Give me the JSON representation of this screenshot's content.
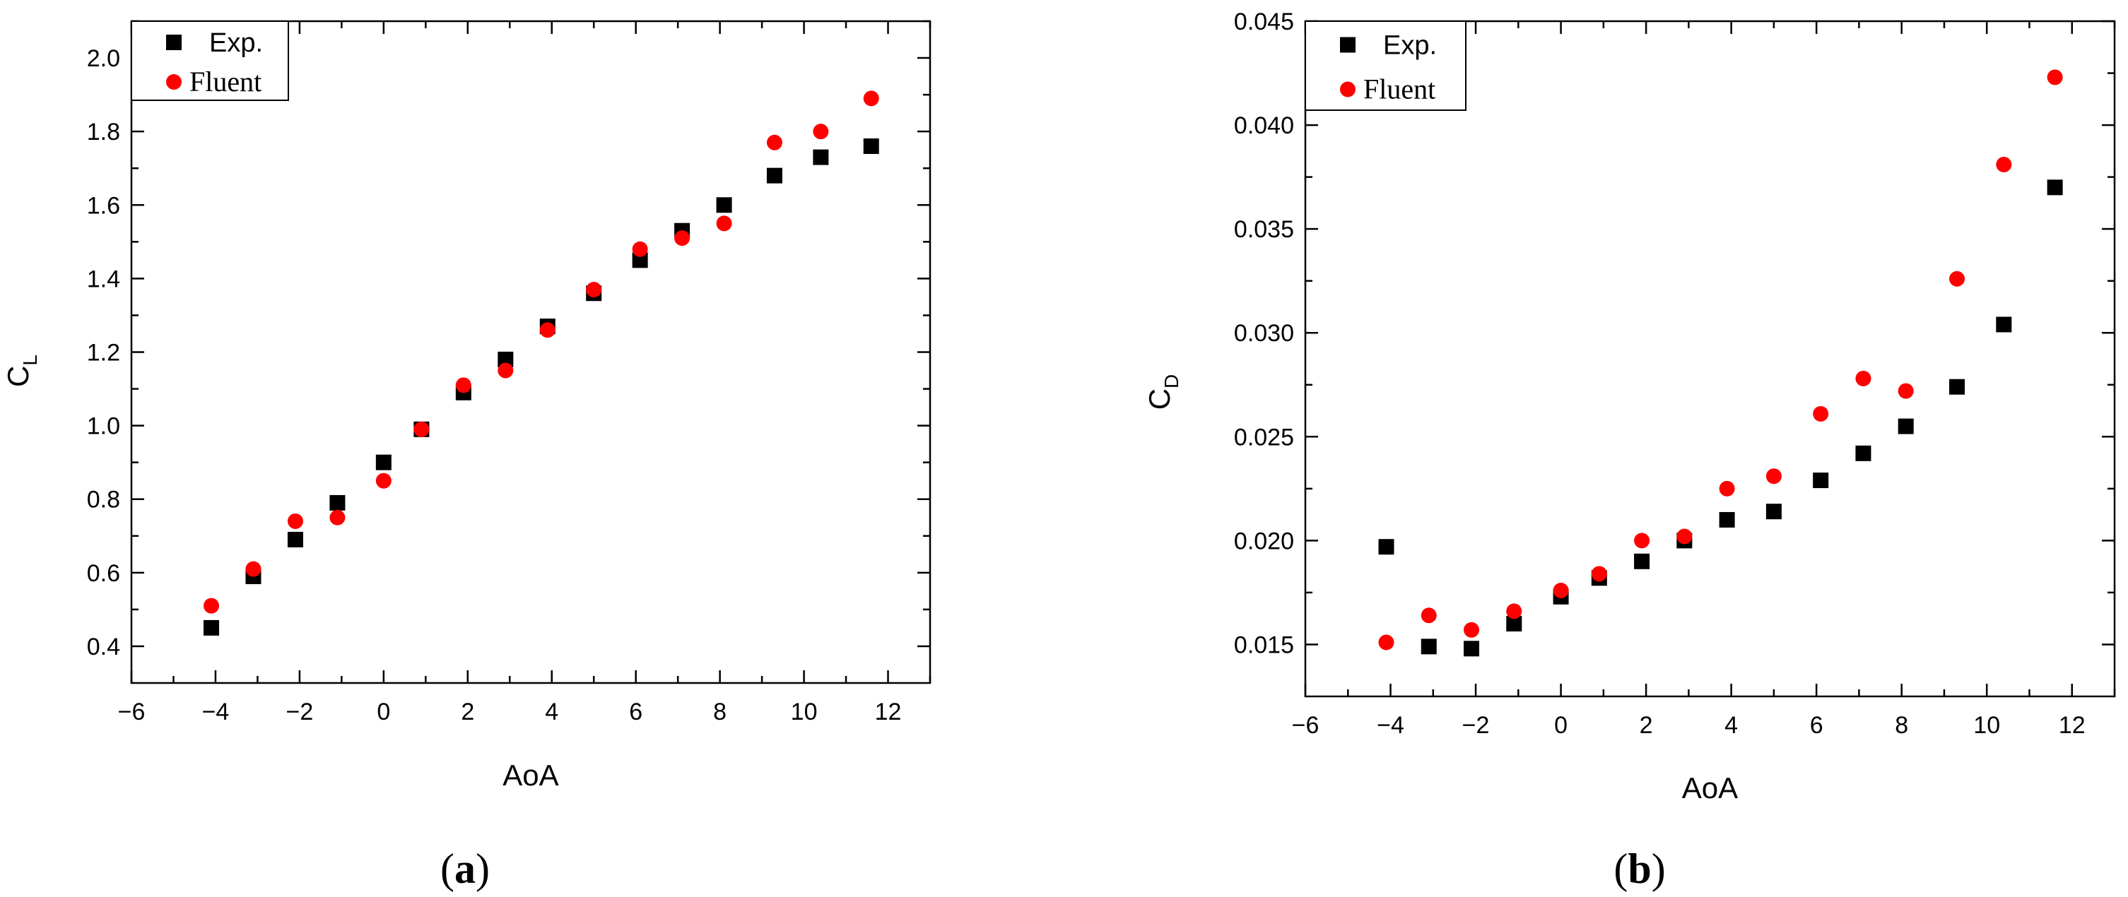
{
  "chart_data": [
    {
      "type": "scatter",
      "panel_label": "(a)",
      "panel_letter": "a",
      "xlabel": "AoA",
      "ylabel": "C",
      "ylabel_sub": "L",
      "xlim": [
        -6,
        13
      ],
      "ylim": [
        0.3,
        2.1
      ],
      "xticks": [
        -6,
        -4,
        -2,
        0,
        2,
        4,
        6,
        8,
        10,
        12
      ],
      "xtick_labels": [
        "−6",
        "−4",
        "−2",
        "0",
        "2",
        "4",
        "6",
        "8",
        "10",
        "12"
      ],
      "yticks": [
        0.4,
        0.6,
        0.8,
        1.0,
        1.2,
        1.4,
        1.6,
        1.8,
        2.0
      ],
      "ytick_labels": [
        "0.4",
        "0.6",
        "0.8",
        "1.0",
        "1.2",
        "1.4",
        "1.6",
        "1.8",
        "2.0"
      ],
      "legend_position": "top-left",
      "series": [
        {
          "name": "Exp.",
          "marker": "square",
          "color": "#000000",
          "x": [
            -4.1,
            -3.1,
            -2.1,
            -1.1,
            0.0,
            0.9,
            1.9,
            2.9,
            3.9,
            5.0,
            6.1,
            7.1,
            8.1,
            9.3,
            10.4,
            11.6
          ],
          "y": [
            0.45,
            0.59,
            0.69,
            0.79,
            0.9,
            0.99,
            1.09,
            1.18,
            1.27,
            1.36,
            1.45,
            1.53,
            1.6,
            1.68,
            1.73,
            1.76
          ]
        },
        {
          "name": "Fluent",
          "marker": "circle",
          "color": "#ff0000",
          "x": [
            -4.1,
            -3.1,
            -2.1,
            -1.1,
            0.0,
            0.9,
            1.9,
            2.9,
            3.9,
            5.0,
            6.1,
            7.1,
            8.1,
            9.3,
            10.4,
            11.6
          ],
          "y": [
            0.51,
            0.61,
            0.74,
            0.75,
            0.85,
            0.99,
            1.11,
            1.15,
            1.26,
            1.37,
            1.48,
            1.51,
            1.55,
            1.77,
            1.8,
            1.89
          ]
        }
      ]
    },
    {
      "type": "scatter",
      "panel_label": "(b)",
      "panel_letter": "b",
      "xlabel": "AoA",
      "ylabel": "C",
      "ylabel_sub": "D",
      "xlim": [
        -6,
        13
      ],
      "ylim": [
        0.0125,
        0.045
      ],
      "xticks": [
        -6,
        -4,
        -2,
        0,
        2,
        4,
        6,
        8,
        10,
        12
      ],
      "xtick_labels": [
        "−6",
        "−4",
        "−2",
        "0",
        "2",
        "4",
        "6",
        "8",
        "10",
        "12"
      ],
      "yticks": [
        0.015,
        0.02,
        0.025,
        0.03,
        0.035,
        0.04,
        0.045
      ],
      "ytick_labels": [
        "0.015",
        "0.020",
        "0.025",
        "0.030",
        "0.035",
        "0.040",
        "0.045"
      ],
      "legend_position": "top-left",
      "series": [
        {
          "name": "Exp.",
          "marker": "square",
          "color": "#000000",
          "x": [
            -4.1,
            -3.1,
            -2.1,
            -1.1,
            0.0,
            0.9,
            1.9,
            2.9,
            3.9,
            5.0,
            6.1,
            7.1,
            8.1,
            9.3,
            10.4,
            11.6
          ],
          "y": [
            0.0197,
            0.0149,
            0.0148,
            0.016,
            0.0173,
            0.0182,
            0.019,
            0.02,
            0.021,
            0.0214,
            0.0229,
            0.0242,
            0.0255,
            0.0274,
            0.0304,
            0.037
          ]
        },
        {
          "name": "Fluent",
          "marker": "circle",
          "color": "#ff0000",
          "x": [
            -4.1,
            -3.1,
            -2.1,
            -1.1,
            0.0,
            0.9,
            1.9,
            2.9,
            3.9,
            5.0,
            6.1,
            7.1,
            8.1,
            9.3,
            10.4,
            11.6
          ],
          "y": [
            0.0151,
            0.0164,
            0.0157,
            0.0166,
            0.0176,
            0.0184,
            0.02,
            0.0202,
            0.0225,
            0.0231,
            0.0261,
            0.0278,
            0.0272,
            0.0326,
            0.0381,
            0.0423
          ]
        }
      ]
    }
  ]
}
